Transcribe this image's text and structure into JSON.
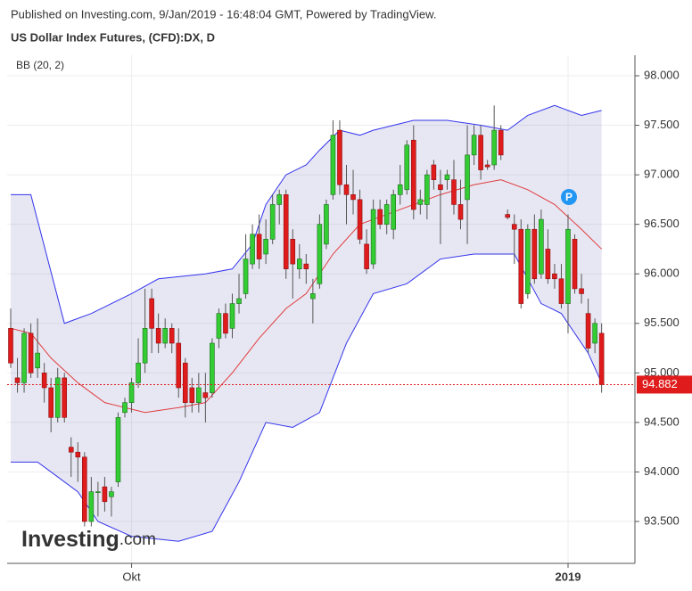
{
  "chart_data": {
    "type": "candlestick",
    "published": "Published on Investing.com, 9/Jan/2019 - 16:48:04 GMT, Powered by TradingView.",
    "title": "US Dollar Index Futures, (CFD):DX, D",
    "indicator": "BB (20, 2)",
    "marker": "P",
    "logo": [
      "Investing",
      ".com"
    ],
    "categories": [
      null,
      null,
      null,
      null,
      null,
      null,
      null,
      null,
      null,
      null,
      null,
      null,
      null,
      null,
      null,
      null,
      null,
      null,
      "Okt",
      null,
      null,
      null,
      null,
      null,
      null,
      null,
      null,
      null,
      null,
      null,
      null,
      null,
      null,
      null,
      null,
      null,
      null,
      null,
      null,
      null,
      null,
      null,
      null,
      null,
      null,
      null,
      null,
      null,
      null,
      null,
      null,
      null,
      null,
      null,
      null,
      null,
      null,
      null,
      null,
      null,
      null,
      null,
      null,
      null,
      null,
      null,
      null,
      null,
      null,
      null,
      null,
      null,
      null,
      null,
      null,
      null,
      null,
      null,
      null,
      null,
      null,
      null,
      null,
      "2019",
      null,
      null,
      null,
      null,
      null
    ],
    "open": [
      95.45,
      94.95,
      94.9,
      95.4,
      95.05,
      95.0,
      94.85,
      94.55,
      94.95,
      94.25,
      94.2,
      94.15,
      93.5,
      93.8,
      93.85,
      93.75,
      93.9,
      94.6,
      94.7,
      94.9,
      95.1,
      95.75,
      95.45,
      95.3,
      95.45,
      95.3,
      95.1,
      94.85,
      94.7,
      94.8,
      94.8,
      95.35,
      95.6,
      95.45,
      95.7,
      95.8,
      96.1,
      96.4,
      96.2,
      96.35,
      96.7,
      96.8,
      96.35,
      96.05,
      96.1,
      95.75,
      95.9,
      96.3,
      96.8,
      97.45,
      96.9,
      96.8,
      96.75,
      96.3,
      96.1,
      96.65,
      96.5,
      96.45,
      96.8,
      96.85,
      97.35,
      96.7,
      96.7,
      97.1,
      96.9,
      96.95,
      96.95,
      96.7,
      96.75,
      97.2,
      97.4,
      97.1,
      97.1,
      97.45,
      96.6,
      96.5,
      96.45,
      95.8,
      96.45,
      96.0,
      96.25,
      96.0,
      95.95,
      95.7,
      96.35,
      95.85,
      95.6,
      95.3,
      95.4
    ],
    "high": [
      95.65,
      95.15,
      95.45,
      95.5,
      95.55,
      95.1,
      94.95,
      95.05,
      95.0,
      94.35,
      94.3,
      94.2,
      93.95,
      93.9,
      93.95,
      93.85,
      94.6,
      94.75,
      94.95,
      95.35,
      95.85,
      95.85,
      95.6,
      95.55,
      95.5,
      95.45,
      95.15,
      94.95,
      95.0,
      95.0,
      95.35,
      95.65,
      95.7,
      95.8,
      96.0,
      96.4,
      96.5,
      96.6,
      96.55,
      96.8,
      96.85,
      96.85,
      96.45,
      96.3,
      96.2,
      95.95,
      96.6,
      96.75,
      97.55,
      97.55,
      97.1,
      97.05,
      96.85,
      96.45,
      96.75,
      96.75,
      96.75,
      96.85,
      97.1,
      97.35,
      97.5,
      96.85,
      97.05,
      97.15,
      97.05,
      97.05,
      97.15,
      96.95,
      97.5,
      97.5,
      97.5,
      97.15,
      97.7,
      97.5,
      96.65,
      96.6,
      96.55,
      96.5,
      96.6,
      96.65,
      96.45,
      96.1,
      96.1,
      96.6,
      96.4,
      96.0,
      95.75,
      95.55,
      95.5
    ],
    "low": [
      95.05,
      94.8,
      94.8,
      94.95,
      94.95,
      94.7,
      94.4,
      94.5,
      94.5,
      93.95,
      93.9,
      93.45,
      93.45,
      93.55,
      93.6,
      93.55,
      93.85,
      94.55,
      94.6,
      94.85,
      95.0,
      95.2,
      95.2,
      95.25,
      95.2,
      94.75,
      94.55,
      94.6,
      94.6,
      94.5,
      94.75,
      95.25,
      95.35,
      95.35,
      95.6,
      95.75,
      96.05,
      96.05,
      96.1,
      96.3,
      96.5,
      95.95,
      95.75,
      95.95,
      95.9,
      95.5,
      95.85,
      96.25,
      96.75,
      96.8,
      96.5,
      96.6,
      96.3,
      96.0,
      96.05,
      96.45,
      96.4,
      96.35,
      96.7,
      96.8,
      96.55,
      96.6,
      96.55,
      96.85,
      96.3,
      96.85,
      96.6,
      96.45,
      96.3,
      97.1,
      96.95,
      97.05,
      97.05,
      97.15,
      96.55,
      96.1,
      95.65,
      95.75,
      95.9,
      95.95,
      95.9,
      95.85,
      95.65,
      95.4,
      95.8,
      95.7,
      95.2,
      95.2,
      94.8
    ],
    "close": [
      95.1,
      94.9,
      95.4,
      95.0,
      95.2,
      94.85,
      94.55,
      94.95,
      94.55,
      94.2,
      94.15,
      93.5,
      93.8,
      93.8,
      93.7,
      93.8,
      94.55,
      94.7,
      94.9,
      95.1,
      95.45,
      95.45,
      95.3,
      95.45,
      95.3,
      94.85,
      94.7,
      94.7,
      94.85,
      94.75,
      95.3,
      95.6,
      95.4,
      95.7,
      95.75,
      96.15,
      96.4,
      96.15,
      96.35,
      96.7,
      96.8,
      96.05,
      96.1,
      96.15,
      96.05,
      95.8,
      96.5,
      96.7,
      97.4,
      96.9,
      96.8,
      96.75,
      96.35,
      96.05,
      96.65,
      96.5,
      96.7,
      96.8,
      96.9,
      97.3,
      96.65,
      96.75,
      97.0,
      96.95,
      96.85,
      97.0,
      96.7,
      96.55,
      97.2,
      97.4,
      97.05,
      97.08,
      97.45,
      97.2,
      96.57,
      96.45,
      95.7,
      96.45,
      95.95,
      96.55,
      95.95,
      95.95,
      95.7,
      96.45,
      95.85,
      95.8,
      95.25,
      95.5,
      94.882
    ],
    "up_color": "#33cc33",
    "down_color": "#e01b1b",
    "bands": {
      "upper": {
        "color": "#3333ee",
        "x": [
          0,
          3,
          8,
          12,
          15,
          18,
          22,
          29,
          33,
          36,
          38,
          41,
          44,
          46,
          49,
          52,
          54,
          60,
          65,
          70,
          74,
          77,
          81,
          85,
          88
        ],
        "values": [
          96.8,
          96.8,
          95.5,
          95.6,
          95.7,
          95.8,
          95.95,
          96.0,
          96.05,
          96.3,
          96.7,
          97.0,
          97.1,
          97.25,
          97.45,
          97.4,
          97.45,
          97.55,
          97.55,
          97.5,
          97.45,
          97.6,
          97.7,
          97.6,
          97.65
        ]
      },
      "middle": {
        "color": "#e03c3c",
        "x": [
          0,
          3,
          6,
          10,
          14,
          20,
          25,
          29,
          33,
          37,
          41,
          44,
          48,
          52,
          56,
          60,
          64,
          69,
          73,
          77,
          81,
          85,
          88
        ],
        "values": [
          95.45,
          95.4,
          95.15,
          94.9,
          94.7,
          94.6,
          94.65,
          94.7,
          95.0,
          95.35,
          95.65,
          95.8,
          96.2,
          96.5,
          96.6,
          96.7,
          96.8,
          96.9,
          96.95,
          96.85,
          96.7,
          96.45,
          96.25
        ]
      },
      "lower": {
        "color": "#3333ee",
        "x": [
          0,
          4,
          6,
          10,
          13,
          18,
          25,
          30,
          34,
          38,
          42,
          46,
          50,
          54,
          59,
          64,
          69,
          73,
          75,
          79,
          82,
          86,
          88
        ],
        "values": [
          94.1,
          94.1,
          94.0,
          93.8,
          93.5,
          93.35,
          93.3,
          93.4,
          93.9,
          94.5,
          94.45,
          94.6,
          95.3,
          95.8,
          95.9,
          96.15,
          96.2,
          96.2,
          96.2,
          95.7,
          95.6,
          95.2,
          94.9
        ]
      }
    },
    "ylim": [
      93.077,
      98.207
    ],
    "yticks": [
      {
        "value": 93.5,
        "label": "93.500"
      },
      {
        "value": 94.0,
        "label": "94.000"
      },
      {
        "value": 94.5,
        "label": "94.500"
      },
      {
        "value": 95.0,
        "label": "95.000"
      },
      {
        "value": 95.5,
        "label": "95.500"
      },
      {
        "value": 96.0,
        "label": "96.000"
      },
      {
        "value": 96.5,
        "label": "96.500"
      },
      {
        "value": 97.0,
        "label": "97.000"
      },
      {
        "value": 97.5,
        "label": "97.500"
      },
      {
        "value": 98.0,
        "label": "98.000"
      }
    ],
    "grid": true
  }
}
